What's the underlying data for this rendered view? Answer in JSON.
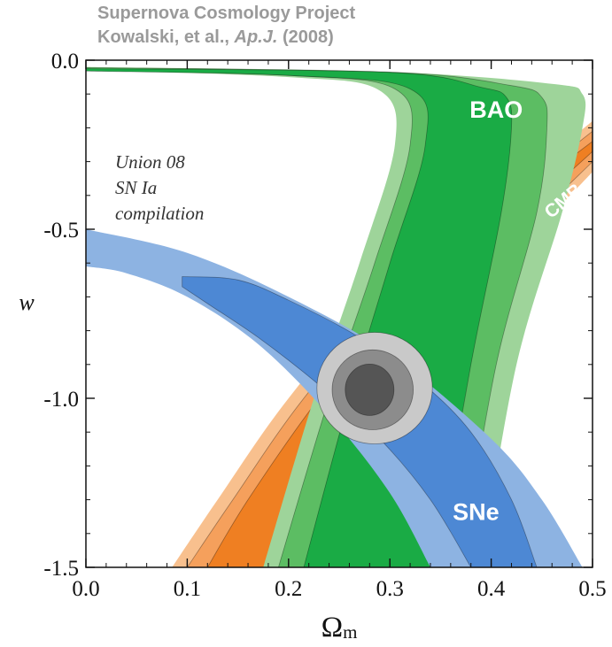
{
  "credit": {
    "line1": "Supernova Cosmology Project",
    "line2_authors": "Kowalski, et al., ",
    "line2_journal": "Ap.J.",
    "line2_year": " (2008)"
  },
  "chart_data": {
    "type": "contour",
    "xlabel": "Ω",
    "xlabel_sub": "m",
    "ylabel": "w",
    "xlim": [
      0.0,
      0.5
    ],
    "ylim": [
      -1.5,
      0.0
    ],
    "x_ticks": [
      0.0,
      0.1,
      0.2,
      0.3,
      0.4,
      0.5
    ],
    "x_tick_labels": [
      "0.0",
      "0.1",
      "0.2",
      "0.3",
      "0.4",
      "0.5"
    ],
    "y_ticks": [
      0.0,
      -0.5,
      -1.0,
      -1.5
    ],
    "y_tick_labels": [
      "0.0",
      "-0.5",
      "-1.0",
      "-1.5"
    ],
    "annotation": [
      "Union 08",
      "SN Ia",
      "compilation"
    ],
    "regions": [
      {
        "name": "CMB",
        "colors": [
          "#f8c08e",
          "#f5a05c",
          "#ef7f22"
        ],
        "levels": [
          {
            "left": [
              [
                0.085,
                -1.5
              ],
              [
                0.13,
                -1.3
              ],
              [
                0.2,
                -1.0
              ],
              [
                0.3,
                -0.65
              ],
              [
                0.41,
                -0.4
              ],
              [
                0.5,
                -0.18
              ]
            ],
            "right": [
              [
                0.5,
                -0.33
              ],
              [
                0.43,
                -0.56
              ],
              [
                0.35,
                -0.88
              ],
              [
                0.29,
                -1.18
              ],
              [
                0.245,
                -1.5
              ]
            ]
          },
          {
            "left": [
              [
                0.1,
                -1.5
              ],
              [
                0.145,
                -1.3
              ],
              [
                0.215,
                -1.0
              ],
              [
                0.315,
                -0.65
              ],
              [
                0.42,
                -0.4
              ],
              [
                0.5,
                -0.21
              ]
            ],
            "right": [
              [
                0.5,
                -0.3
              ],
              [
                0.425,
                -0.53
              ],
              [
                0.345,
                -0.85
              ],
              [
                0.28,
                -1.15
              ],
              [
                0.235,
                -1.5
              ]
            ]
          },
          {
            "left": [
              [
                0.12,
                -1.5
              ],
              [
                0.16,
                -1.3
              ],
              [
                0.23,
                -1.0
              ],
              [
                0.325,
                -0.65
              ],
              [
                0.43,
                -0.4
              ],
              [
                0.5,
                -0.24
              ]
            ],
            "right": [
              [
                0.5,
                -0.27
              ],
              [
                0.42,
                -0.5
              ],
              [
                0.34,
                -0.82
              ],
              [
                0.27,
                -1.12
              ],
              [
                0.225,
                -1.5
              ]
            ]
          }
        ]
      },
      {
        "name": "BAO",
        "colors": [
          "#9ed49a",
          "#5cbd63",
          "#1aab45"
        ],
        "levels": [
          {
            "left": [
              [
                0.0,
                -0.03
              ],
              [
                0.2,
                -0.05
              ],
              [
                0.29,
                -0.09
              ],
              [
                0.305,
                -0.25
              ],
              [
                0.27,
                -0.6
              ],
              [
                0.225,
                -1.0
              ],
              [
                0.175,
                -1.5
              ]
            ],
            "right": [
              [
                0.39,
                -1.5
              ],
              [
                0.425,
                -0.9
              ],
              [
                0.47,
                -0.45
              ],
              [
                0.49,
                -0.2
              ],
              [
                0.49,
                -0.1
              ],
              [
                0.46,
                -0.07
              ],
              [
                0.3,
                -0.035
              ],
              [
                0.0,
                -0.02
              ]
            ]
          },
          {
            "left": [
              [
                0.0,
                -0.03
              ],
              [
                0.2,
                -0.045
              ],
              [
                0.305,
                -0.085
              ],
              [
                0.32,
                -0.25
              ],
              [
                0.285,
                -0.6
              ],
              [
                0.24,
                -1.0
              ],
              [
                0.19,
                -1.5
              ]
            ],
            "right": [
              [
                0.37,
                -1.5
              ],
              [
                0.405,
                -0.9
              ],
              [
                0.445,
                -0.45
              ],
              [
                0.455,
                -0.2
              ],
              [
                0.45,
                -0.11
              ],
              [
                0.42,
                -0.075
              ],
              [
                0.3,
                -0.035
              ],
              [
                0.0,
                -0.022
              ]
            ]
          },
          {
            "left": [
              [
                0.0,
                -0.032
              ],
              [
                0.2,
                -0.045
              ],
              [
                0.32,
                -0.085
              ],
              [
                0.335,
                -0.25
              ],
              [
                0.3,
                -0.6
              ],
              [
                0.26,
                -1.0
              ],
              [
                0.215,
                -1.5
              ]
            ],
            "right": [
              [
                0.345,
                -1.5
              ],
              [
                0.38,
                -0.9
              ],
              [
                0.41,
                -0.45
              ],
              [
                0.42,
                -0.2
              ],
              [
                0.415,
                -0.11
              ],
              [
                0.39,
                -0.08
              ],
              [
                0.3,
                -0.036
              ],
              [
                0.0,
                -0.025
              ]
            ]
          }
        ]
      },
      {
        "name": "SNe",
        "colors": [
          "#8db3e2",
          "#4d88d4",
          "#1f5fb8"
        ],
        "levels": [
          {
            "left": [
              [
                0.0,
                -0.5
              ],
              [
                0.1,
                -0.57
              ],
              [
                0.2,
                -0.7
              ],
              [
                0.3,
                -0.87
              ],
              [
                0.4,
                -1.12
              ],
              [
                0.45,
                -1.3
              ],
              [
                0.49,
                -1.5
              ]
            ],
            "right": [
              [
                0.34,
                -1.5
              ],
              [
                0.3,
                -1.28
              ],
              [
                0.24,
                -1.05
              ],
              [
                0.17,
                -0.84
              ],
              [
                0.1,
                -0.7
              ],
              [
                0.04,
                -0.63
              ],
              [
                0.0,
                -0.61
              ]
            ]
          },
          {
            "left": [
              [
                0.095,
                -0.64
              ],
              [
                0.15,
                -0.65
              ],
              [
                0.2,
                -0.71
              ],
              [
                0.27,
                -0.82
              ],
              [
                0.33,
                -0.95
              ],
              [
                0.38,
                -1.1
              ],
              [
                0.42,
                -1.3
              ],
              [
                0.445,
                -1.5
              ]
            ],
            "right": [
              [
                0.38,
                -1.5
              ],
              [
                0.34,
                -1.3
              ],
              [
                0.29,
                -1.12
              ],
              [
                0.23,
                -0.96
              ],
              [
                0.17,
                -0.82
              ],
              [
                0.12,
                -0.72
              ],
              [
                0.095,
                -0.67
              ]
            ]
          }
        ]
      },
      {
        "name": "combined",
        "colors": [
          "#c9c9c9",
          "#8c8c8c",
          "#555555"
        ],
        "ellipses": [
          {
            "center": [
              0.285,
              -0.97
            ],
            "radii": [
              0.057,
              0.165
            ]
          },
          {
            "center": [
              0.283,
              -0.975
            ],
            "radii": [
              0.04,
              0.118
            ]
          },
          {
            "center": [
              0.28,
              -0.975
            ],
            "radii": [
              0.024,
              0.076
            ]
          }
        ]
      }
    ],
    "region_labels": [
      {
        "text": "BAO",
        "at": [
          0.405,
          -0.17
        ],
        "size": 27
      },
      {
        "text": "CMB",
        "at": [
          0.475,
          -0.43
        ],
        "size": 21,
        "rotate": -40
      },
      {
        "text": "SNe",
        "at": [
          0.385,
          -1.36
        ],
        "size": 27
      }
    ]
  }
}
